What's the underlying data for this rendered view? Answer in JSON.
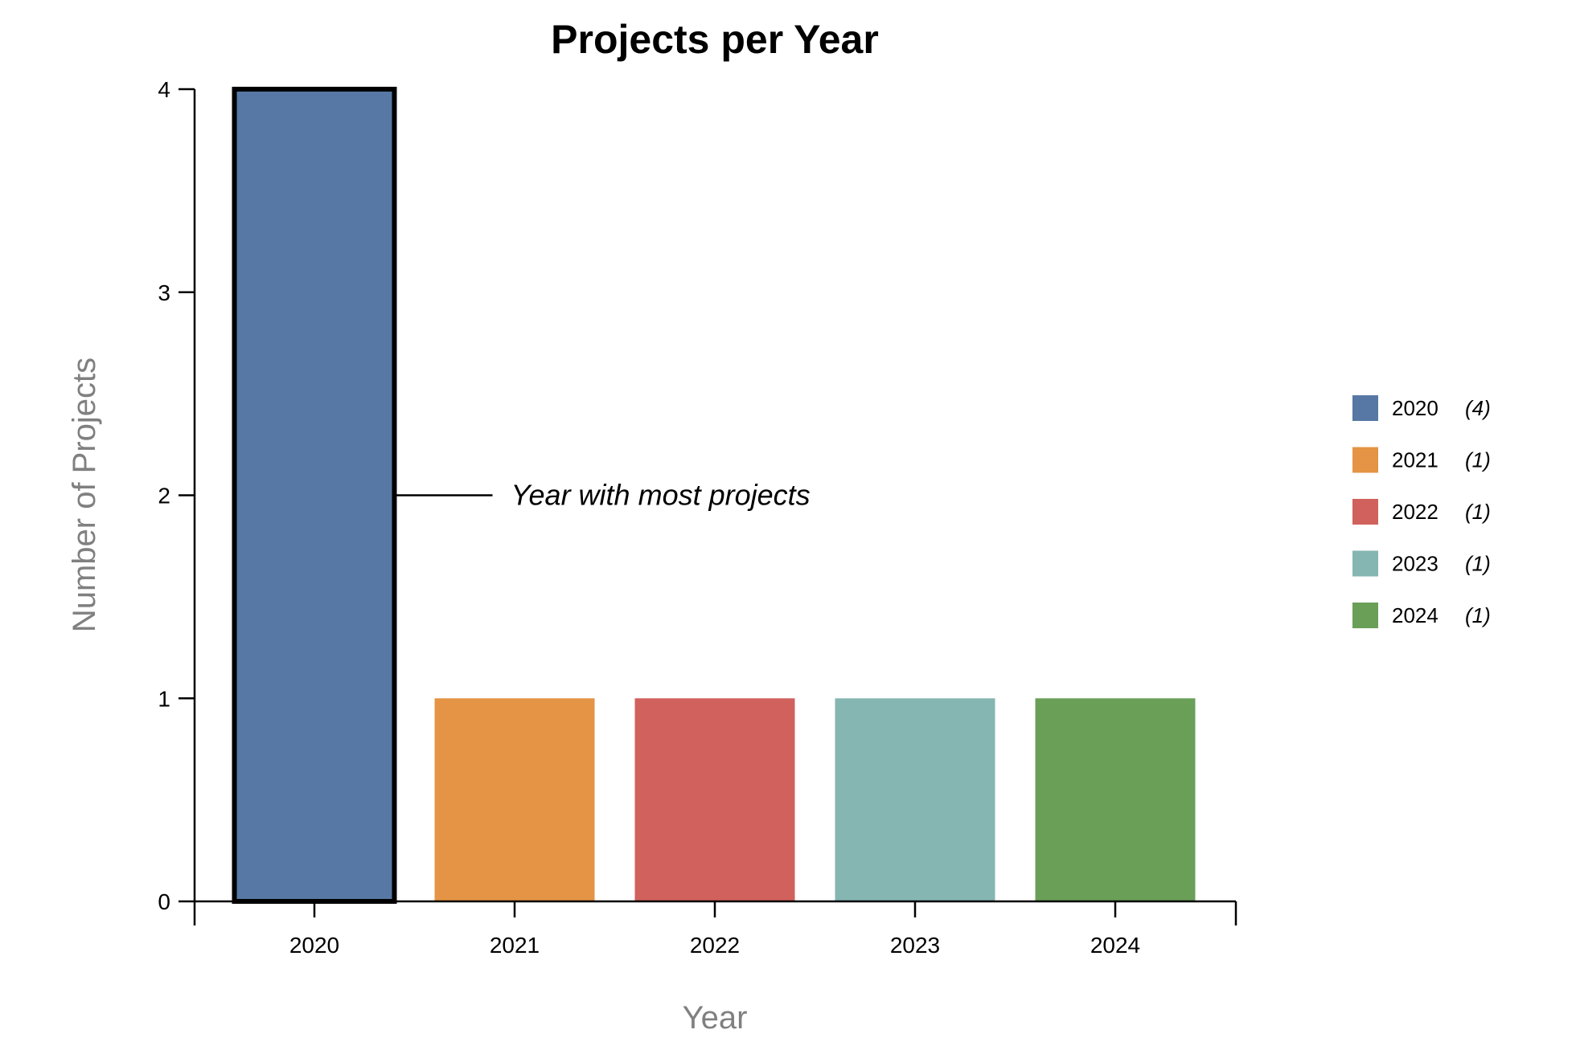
{
  "chart_data": {
    "type": "bar",
    "title": "Projects per Year",
    "xlabel": "Year",
    "ylabel": "Number of Projects",
    "categories": [
      "2020",
      "2021",
      "2022",
      "2023",
      "2024"
    ],
    "values": [
      4,
      1,
      1,
      1,
      1
    ],
    "colors": [
      "#5778a4",
      "#e49444",
      "#d1615d",
      "#85b6b2",
      "#6a9f58"
    ],
    "ylim": [
      0,
      4
    ],
    "yticks": [
      "0",
      "1",
      "2",
      "3",
      "4"
    ],
    "grid": false,
    "highlighted": "2020",
    "annotation": {
      "text": "Year with most projects",
      "category": "2020",
      "y": 2
    },
    "legend": {
      "placement": "right",
      "items": [
        {
          "label": "2020",
          "count": "(4)"
        },
        {
          "label": "2021",
          "count": "(1)"
        },
        {
          "label": "2022",
          "count": "(1)"
        },
        {
          "label": "2023",
          "count": "(1)"
        },
        {
          "label": "2024",
          "count": "(1)"
        }
      ]
    }
  }
}
